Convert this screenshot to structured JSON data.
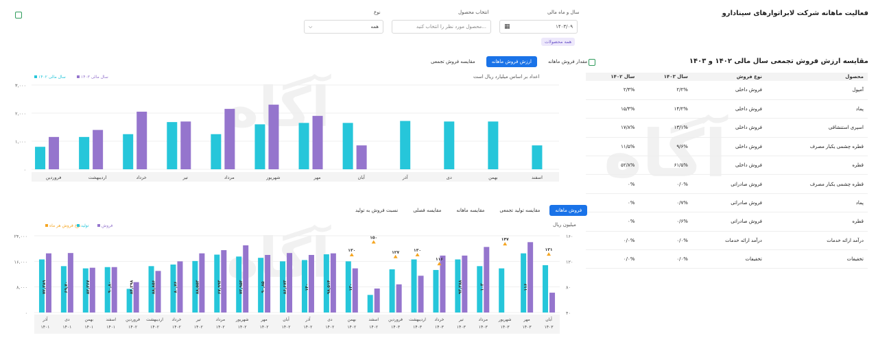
{
  "header": {
    "title": "فعالیت ماهانه شرکت لابراتوارهای سینادارو",
    "date_label": "سال و ماه مالی",
    "date_value": "۱۴۰۳/۰۹",
    "product_label": "انتخاب محصول",
    "product_placeholder": "محصول مورد نظر را انتخاب کنید...",
    "type_label": "نوع",
    "type_value": "همه",
    "tag": "همه محصولات"
  },
  "table": {
    "title": "مقایسه ارزش فروش تجمعی سال مالی ۱۴۰۲ و ۱۴۰۳",
    "columns": [
      "محصول",
      "نوع فروش",
      "سال ۱۴۰۳",
      "سال ۱۴۰۲"
    ],
    "rows": [
      [
        "آمپول",
        "فروش داخلی",
        "۲/۲%",
        "۲/۴%"
      ],
      [
        "پماد",
        "فروش داخلی",
        "۱۴/۲%",
        "۱۵/۴%"
      ],
      [
        "اسپری استنشاقی",
        "فروش داخلی",
        "۱۳/۱%",
        "۱۷/۸%"
      ],
      [
        "قطره چشمی یکبار مصرف",
        "فروش داخلی",
        "۹/۶%",
        "۱۱/۵%"
      ],
      [
        "قطره",
        "فروش داخلی",
        "۶۱/۵%",
        "۵۲/۸%"
      ],
      [
        "قطره چشمی یکبار مصرف",
        "فروش صادراتی",
        "۰/۰%",
        "۰%"
      ],
      [
        "پماد",
        "فروش صادراتی",
        "۰/۷%",
        "۰%"
      ],
      [
        "قطره",
        "فروش صادراتی",
        "۰/۶%",
        "۰%"
      ],
      [
        "درآمد ارائه خدمات",
        "درآمد ارائه خدمات",
        "۰/۰%",
        "۰/۰%"
      ],
      [
        "تخفیفات",
        "تخفیفات",
        "۰/۰%",
        "۰/۰%"
      ]
    ]
  },
  "top_tabs": [
    "مقدار فروش ماهانه",
    "ارزش فروش ماهانه",
    "مقایسه فروش تجمعی"
  ],
  "top_note": "اعداد بر اساس میلیارد ریال است",
  "bottom_tabs": [
    "فروش ماهانه",
    "مقایسه تولید تجمعی",
    "مقایسه ماهانه",
    "مقایسه فصلی",
    "نسبت فروش به تولید"
  ],
  "bottom_unit": "میلیون ریال",
  "colors": {
    "cyan": "#26c6da",
    "purple": "#9575cd",
    "orange": "#f5a623",
    "accent": "#1a73e8"
  },
  "chart_data": [
    {
      "type": "bar",
      "categories": [
        "اسفند",
        "بهمن",
        "دی",
        "آذر",
        "آبان",
        "مهر",
        "شهریور",
        "مرداد",
        "تیر",
        "خرداد",
        "اردیبهشت",
        "فروردین"
      ],
      "series": [
        {
          "name": "سال مالی ۱۴۰۳",
          "color": "#9575cd",
          "values": [
            null,
            null,
            null,
            null,
            850,
            1900,
            2300,
            2150,
            1700,
            2050,
            1400,
            1150
          ]
        },
        {
          "name": "سال مالی ۱۴۰۲",
          "color": "#26c6da",
          "values": [
            850,
            1700,
            1700,
            1720,
            1650,
            1650,
            1600,
            1250,
            1680,
            1250,
            1150,
            800
          ]
        }
      ],
      "yticks": [
        "۰",
        "۱,۰۰۰",
        "۲,۰۰۰",
        "۳,۰۰۰"
      ],
      "ylim": [
        0,
        3000
      ],
      "legend_position": "top-left"
    },
    {
      "type": "bar",
      "categories": [
        "آذر ۱۴۰۱",
        "دی ۱۴۰۱",
        "بهمن ۱۴۰۱",
        "اسفند ۱۴۰۱",
        "فروردین ۱۴۰۲",
        "اردیبهشت ۱۴۰۲",
        "خرداد ۱۴۰۲",
        "تیر ۱۴۰۲",
        "مرداد ۱۴۰۲",
        "شهریور ۱۴۰۲",
        "مهر ۱۴۰۲",
        "آبان ۱۴۰۲",
        "آذر ۱۴۰۲",
        "دی ۱۴۰۲",
        "بهمن ۱۴۰۲",
        "اسفند ۱۴۰۲",
        "فروردین ۱۴۰۳",
        "اردیبهشت ۱۴۰۳",
        "خرداد ۱۴۰۳",
        "تیر ۱۴۰۳",
        "مرداد ۱۴۰۳",
        "شهریور ۱۴۰۳",
        "مهر ۱۴۰۳",
        "آبان ۱۴۰۳"
      ],
      "series": [
        {
          "name": "فروش",
          "color": "#9575cd",
          "values": [
            18500,
            18600,
            14000,
            14200,
            9500,
            13000,
            16000,
            18500,
            19500,
            21000,
            18000,
            18600,
            18000,
            18500,
            13800,
            7500,
            8800,
            11500,
            17800,
            17800,
            20500,
            null,
            22000,
            6200
          ]
        },
        {
          "name": "تولید",
          "color": "#26c6da",
          "values": [
            16600,
            14500,
            13800,
            14200,
            7400,
            14500,
            15000,
            16100,
            18100,
            17500,
            17100,
            16000,
            16400,
            18200,
            16000,
            5500,
            13500,
            16600,
            13300,
            16600,
            14500,
            13800,
            18500,
            14800
          ]
        },
        {
          "name": "نرخ فروش هر ماه",
          "color": "#f5a623",
          "values": [
            null,
            null,
            null,
            null,
            null,
            null,
            null,
            null,
            null,
            null,
            null,
            null,
            null,
            null,
            130,
            150,
            127,
            130,
            116,
            null,
            null,
            147,
            null,
            131
          ]
        }
      ],
      "bar_labels": [
        "۷۲,۳۸۹",
        "۶۹,۷۰",
        "۸۲,۳۶۷",
        "۹۰,۸۰",
        "۸۴,۲۹۸",
        "۸۸,۸۵۶",
        "۸۰,۷۶",
        "۸۸,۵۵۳",
        "۶۷,۹۹۳",
        "۷۳,۹۵۳",
        "۹۰,۸۵",
        "۸۶,۶۷۳",
        "۱۴۰",
        "۹۸,۵۱۴",
        "۱۳۰",
        "",
        "",
        "",
        "",
        "۹۳,۲۸۸",
        "۱۰۳",
        "",
        "۱۱۶",
        ""
      ],
      "line_labels": [
        "",
        "",
        "",
        "",
        "",
        "",
        "",
        "",
        "",
        "",
        "",
        "",
        "",
        "",
        "۱۳۰",
        "۱۵۰",
        "۱۲۷",
        "۱۳۰",
        "۱۱۶",
        "",
        "",
        "۱۴۷",
        "",
        "۱۳۱"
      ],
      "yticks_left": [
        "۰",
        "۸,۰۰۰",
        "۱۶,۰۰۰",
        "۲۴,۰۰۰"
      ],
      "ylim_left": [
        0,
        24000
      ],
      "yticks_right": [
        "۴۰",
        "۸۰",
        "۱۲۰",
        "۱۶۰"
      ],
      "ylim_right": [
        40,
        160
      ],
      "legend_position": "top-left"
    }
  ]
}
